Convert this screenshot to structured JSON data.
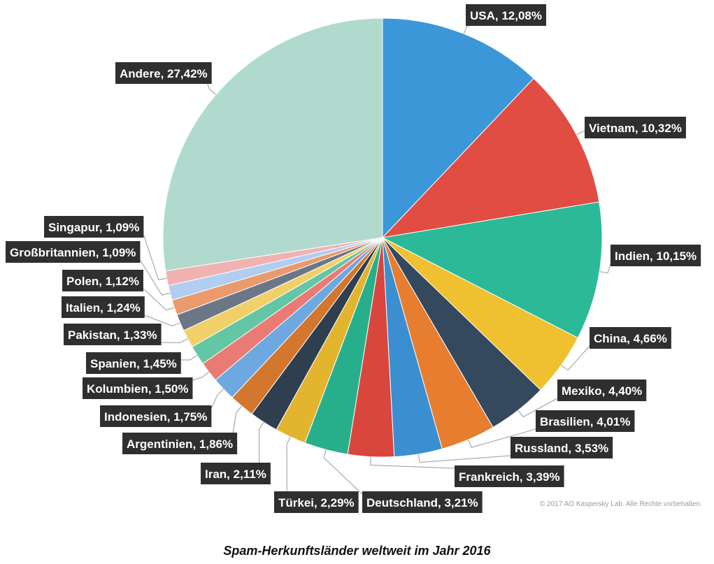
{
  "chart_data": {
    "type": "pie",
    "slices": [
      {
        "label": "USA, 12,08%",
        "value": 12.08,
        "color": "#3b97d8"
      },
      {
        "label": "Vietnam, 10,32%",
        "value": 10.32,
        "color": "#e14d42"
      },
      {
        "label": "Indien, 10,15%",
        "value": 10.15,
        "color": "#2bb997"
      },
      {
        "label": "China, 4,66%",
        "value": 4.66,
        "color": "#efc02f"
      },
      {
        "label": "Mexiko, 4,40%",
        "value": 4.4,
        "color": "#34495e"
      },
      {
        "label": "Brasilien, 4,01%",
        "value": 4.01,
        "color": "#e67d2f"
      },
      {
        "label": "Russland, 3,53%",
        "value": 3.53,
        "color": "#3b8fd0"
      },
      {
        "label": "Frankreich, 3,39%",
        "value": 3.39,
        "color": "#d9463e"
      },
      {
        "label": "Deutschland, 3,21%",
        "value": 3.21,
        "color": "#27af8b"
      },
      {
        "label": "Türkei, 2,29%",
        "value": 2.29,
        "color": "#e3b42e"
      },
      {
        "label": "Iran, 2,11%",
        "value": 2.11,
        "color": "#2f3f50"
      },
      {
        "label": "Argentinien, 1,86%",
        "value": 1.86,
        "color": "#d2772d"
      },
      {
        "label": "Indonesien, 1,75%",
        "value": 1.75,
        "color": "#6da8e0"
      },
      {
        "label": "Kolumbien, 1,50%",
        "value": 1.5,
        "color": "#ea7b74"
      },
      {
        "label": "Spanien, 1,45%",
        "value": 1.45,
        "color": "#63c6a5"
      },
      {
        "label": "Pakistan, 1,33%",
        "value": 1.33,
        "color": "#f1d06a"
      },
      {
        "label": "Italien, 1,24%",
        "value": 1.24,
        "color": "#6b7786"
      },
      {
        "label": "Polen, 1,12%",
        "value": 1.12,
        "color": "#ea9a6c"
      },
      {
        "label": "Großbritannien, 1,09%",
        "value": 1.09,
        "color": "#b1cdf0"
      },
      {
        "label": "Singapur, 1,09%",
        "value": 1.09,
        "color": "#f1b2b2"
      },
      {
        "label": "Andere, 27,42%",
        "value": 27.42,
        "color": "#b0dacd"
      }
    ],
    "start_angle": "12 o'clock",
    "direction": "clockwise"
  },
  "copyright": "© 2017 AO Kaspersky Lab. Alle Rechte vorbehalten.",
  "caption": "Spam-Herkunftsländer weltweit im Jahr 2016"
}
